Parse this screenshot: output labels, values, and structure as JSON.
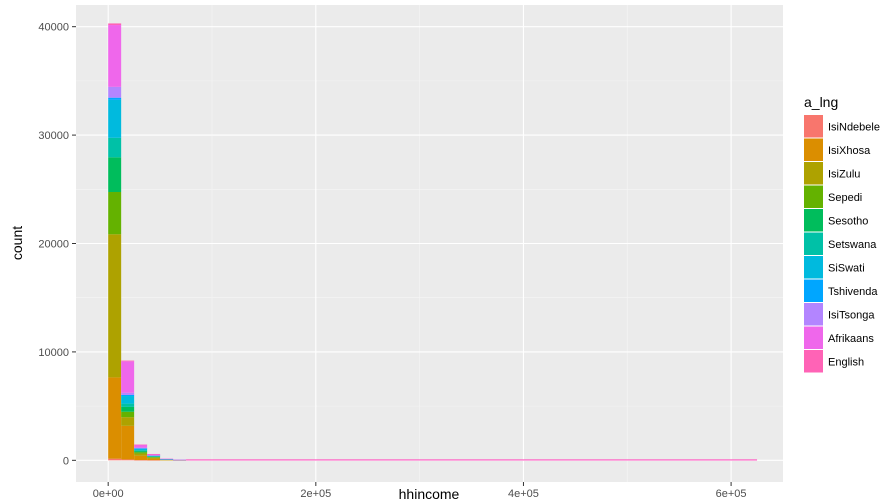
{
  "chart_data": {
    "type": "bar",
    "stacked": true,
    "xlabel": "hhincome",
    "ylabel": "count",
    "xlim": [
      -31000,
      650000
    ],
    "ylim": [
      -2000,
      42000
    ],
    "bin_width": 12500,
    "x_ticks": [
      0,
      200000,
      400000,
      600000
    ],
    "x_tick_labels": [
      "0e+00",
      "2e+05",
      "4e+05",
      "6e+05"
    ],
    "y_ticks": [
      0,
      10000,
      20000,
      30000,
      40000
    ],
    "y_tick_labels": [
      "0",
      "10000",
      "20000",
      "30000",
      "40000"
    ],
    "grid": true,
    "legend": {
      "title": "a_lng",
      "position": "right"
    },
    "bins": [
      {
        "x": 0,
        "values": [
          150,
          7500,
          13200,
          3900,
          3200,
          1800,
          3500,
          200,
          1000,
          5700,
          150
        ]
      },
      {
        "x": 12500,
        "values": [
          80,
          3100,
          800,
          500,
          450,
          300,
          700,
          100,
          200,
          2900,
          70
        ]
      },
      {
        "x": 25000,
        "values": [
          20,
          400,
          200,
          130,
          100,
          80,
          150,
          20,
          70,
          270,
          10
        ]
      },
      {
        "x": 37500,
        "values": [
          10,
          150,
          80,
          60,
          45,
          35,
          50,
          10,
          20,
          120,
          5
        ]
      },
      {
        "x": 50000,
        "values": [
          0,
          40,
          20,
          15,
          12,
          10,
          15,
          3,
          5,
          35,
          0
        ]
      },
      {
        "x": 62500,
        "values": [
          0,
          15,
          8,
          5,
          5,
          4,
          5,
          1,
          2,
          12,
          0
        ]
      }
    ],
    "tail": {
      "from": 75000,
      "to": 625000,
      "color": "#FF61C3"
    },
    "series": [
      {
        "name": "IsiNdebele",
        "color": "#F8766D"
      },
      {
        "name": "IsiXhosa",
        "color": "#DB8E00"
      },
      {
        "name": "IsiZulu",
        "color": "#AEA200"
      },
      {
        "name": "Sepedi",
        "color": "#64B200"
      },
      {
        "name": "Sesotho",
        "color": "#00BD5C"
      },
      {
        "name": "Setswana",
        "color": "#00C1A7"
      },
      {
        "name": "SiSwati",
        "color": "#00BADE"
      },
      {
        "name": "Tshivenda",
        "color": "#00A6FF"
      },
      {
        "name": "IsiTsonga",
        "color": "#B385FF"
      },
      {
        "name": "Afrikaans",
        "color": "#EF67EB"
      },
      {
        "name": "English",
        "color": "#FF63B6"
      }
    ]
  }
}
